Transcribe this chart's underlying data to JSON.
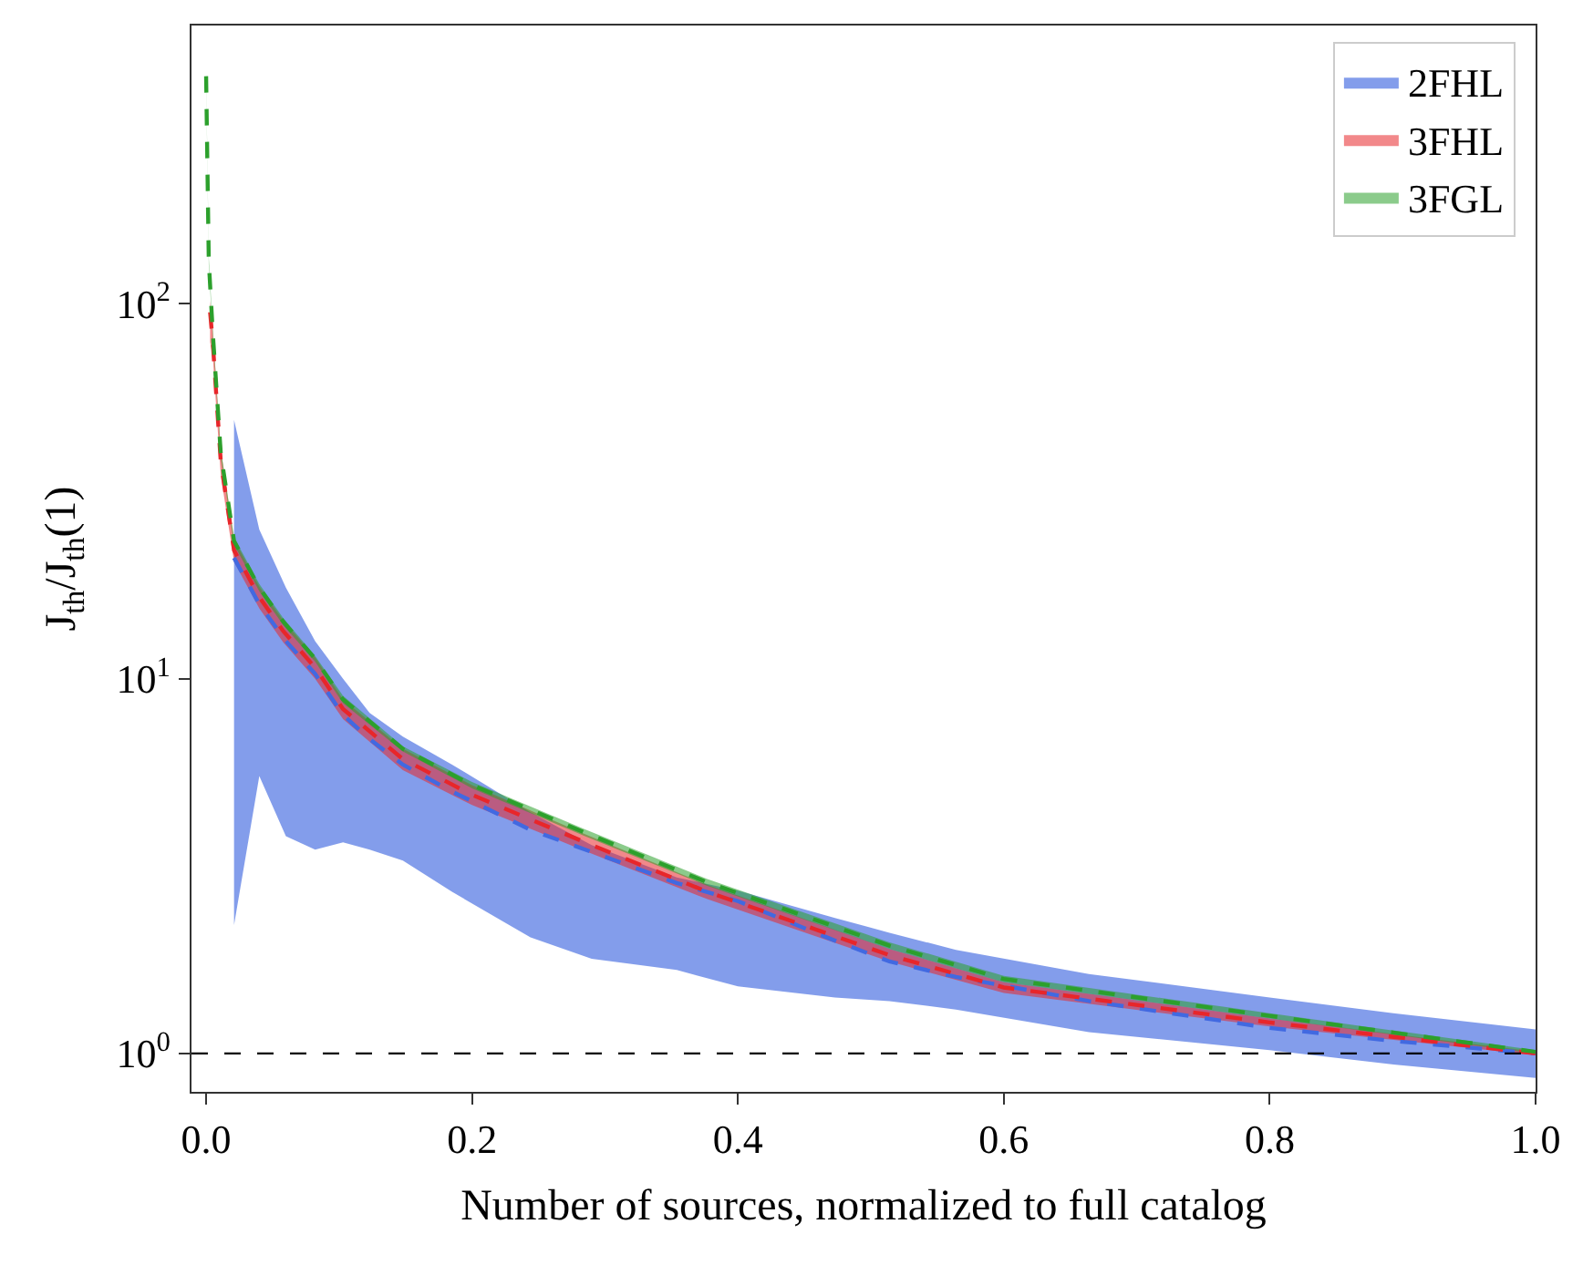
{
  "chart_data": {
    "type": "line",
    "xlabel": "Number of sources, normalized to full catalog",
    "ylabel": "J$_{th}$/J$_{th}$(1)",
    "log": "y",
    "legend": "top right",
    "line_style": "dashed",
    "marker": "none",
    "xlim": [
      -0.011,
      1.0
    ],
    "xticks": [
      {
        "value": 0,
        "label": "0.0"
      },
      0.2,
      0.4,
      0.6,
      0.8,
      {
        "value": 1,
        "label": "1.0"
      }
    ],
    "ylim": [
      0.79,
      553
    ],
    "yticks": [
      {
        "value": 1,
        "label": "10$^{0}$"
      },
      {
        "value": 10,
        "label": "10$^{1}$"
      },
      {
        "value": 100,
        "label": "10$^{2}$"
      }
    ],
    "ref_lines": [
      {
        "axis": "y",
        "value": 1,
        "label": null,
        "color": "#000000",
        "line_style": "dashed"
      }
    ],
    "series": [
      {
        "name": "2FHL",
        "color": "#4169e1",
        "x": [
          0.021,
          0.04,
          0.06,
          0.082,
          0.103,
          0.123,
          0.148,
          0.185,
          0.244,
          0.29,
          0.354,
          0.4,
          0.473,
          0.514,
          0.564,
          0.664,
          0.8,
          0.893,
          1.0
        ],
        "values": [
          21,
          15.8,
          12.6,
          10.3,
          8.0,
          6.9,
          5.9,
          5.0,
          3.95,
          3.45,
          2.85,
          2.55,
          2.0,
          1.76,
          1.6,
          1.38,
          1.17,
          1.08,
          1.0
        ],
        "upper": [
          49,
          25,
          17.5,
          12.6,
          10,
          8.1,
          7.0,
          5.9,
          4.4,
          3.6,
          2.95,
          2.72,
          2.3,
          2.1,
          1.89,
          1.63,
          1.41,
          1.28,
          1.16
        ],
        "lower": [
          2.2,
          5.5,
          3.8,
          3.5,
          3.66,
          3.5,
          3.27,
          2.7,
          2.04,
          1.79,
          1.67,
          1.51,
          1.41,
          1.38,
          1.31,
          1.14,
          1.02,
          0.935,
          0.86
        ]
      },
      {
        "name": "3FHL",
        "color": "#e8262a",
        "x": [
          0.003,
          0.005,
          0.011,
          0.021,
          0.04,
          0.058,
          0.082,
          0.103,
          0.148,
          0.2,
          0.285,
          0.377,
          0.514,
          0.6,
          0.8,
          1.0
        ],
        "values": [
          95,
          79,
          38,
          22,
          16.5,
          13.4,
          10.7,
          8.3,
          6.1,
          4.9,
          3.66,
          2.7,
          1.83,
          1.5,
          1.21,
          1.0
        ],
        "upper": [
          102,
          85,
          41,
          23.5,
          17.6,
          14.3,
          11.4,
          8.8,
          6.5,
          5.2,
          3.85,
          2.82,
          1.9,
          1.55,
          1.24,
          1.01
        ],
        "lower": [
          79,
          73,
          35,
          20.5,
          15.4,
          12.5,
          10.0,
          7.8,
          5.7,
          4.6,
          3.47,
          2.58,
          1.76,
          1.45,
          1.18,
          0.99
        ]
      },
      {
        "name": "3FGL",
        "color": "#2ca02c",
        "x": [
          0.0,
          0.002,
          0.005,
          0.011,
          0.021,
          0.04,
          0.058,
          0.082,
          0.103,
          0.148,
          0.2,
          0.285,
          0.377,
          0.514,
          0.6,
          0.8,
          1.0
        ],
        "values": [
          405,
          130,
          84,
          40,
          23.3,
          17.5,
          14.2,
          11.3,
          8.8,
          6.5,
          5.2,
          3.88,
          2.86,
          1.94,
          1.58,
          1.26,
          1.01
        ],
        "upper": [
          413,
          133,
          86,
          41,
          23.8,
          17.9,
          14.5,
          11.5,
          9.0,
          6.6,
          5.3,
          3.96,
          2.92,
          1.98,
          1.61,
          1.28,
          1.02
        ],
        "lower": [
          397,
          127,
          82,
          39,
          22.8,
          17.1,
          13.9,
          11.1,
          8.6,
          6.4,
          5.1,
          3.8,
          2.8,
          1.9,
          1.55,
          1.24,
          1.0
        ]
      }
    ]
  }
}
